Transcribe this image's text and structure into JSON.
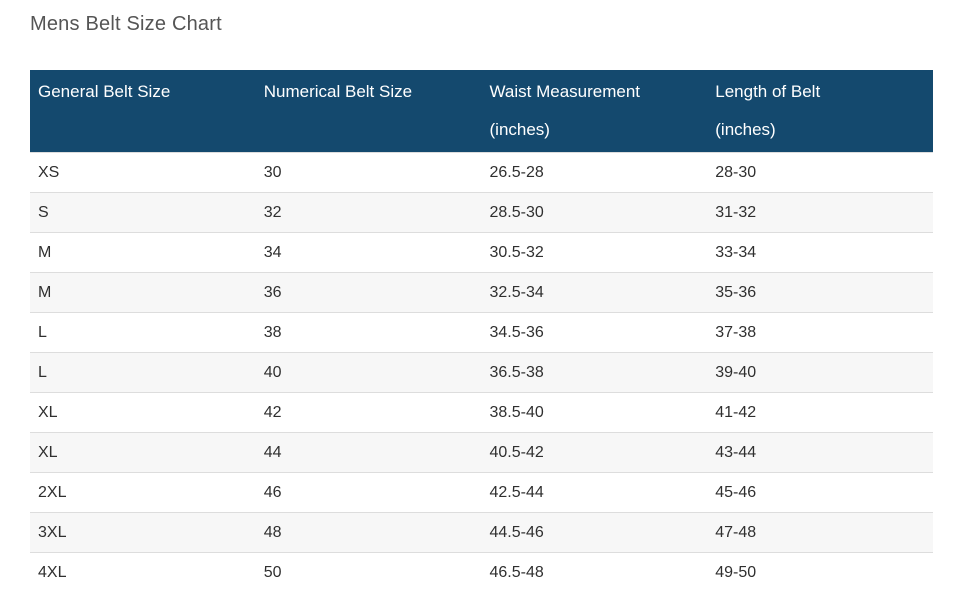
{
  "page": {
    "title": "Mens Belt Size Chart"
  },
  "colors": {
    "header_bg": "#14496e",
    "header_text": "#ffffff",
    "row_alt_bg": "#f7f7f7",
    "row_border": "#dddddd",
    "body_text": "#2f2f2f",
    "title_text": "#555555"
  },
  "table": {
    "columns": [
      {
        "lines": [
          "General Belt Size"
        ]
      },
      {
        "lines": [
          "Numerical Belt Size"
        ]
      },
      {
        "lines": [
          "Waist Measurement",
          "(inches)"
        ]
      },
      {
        "lines": [
          "Length of Belt",
          "(inches)"
        ]
      }
    ],
    "rows": [
      [
        "XS",
        "30",
        "26.5-28",
        "28-30"
      ],
      [
        "S",
        "32",
        "28.5-30",
        "31-32"
      ],
      [
        "M",
        "34",
        "30.5-32",
        "33-34"
      ],
      [
        "M",
        "36",
        "32.5-34",
        "35-36"
      ],
      [
        "L",
        "38",
        "34.5-36",
        "37-38"
      ],
      [
        "L",
        "40",
        "36.5-38",
        "39-40"
      ],
      [
        "XL",
        "42",
        "38.5-40",
        "41-42"
      ],
      [
        "XL",
        "44",
        "40.5-42",
        "43-44"
      ],
      [
        "2XL",
        "46",
        "42.5-44",
        "45-46"
      ],
      [
        "3XL",
        "48",
        "44.5-46",
        "47-48"
      ],
      [
        "4XL",
        "50",
        "46.5-48",
        "49-50"
      ]
    ]
  }
}
